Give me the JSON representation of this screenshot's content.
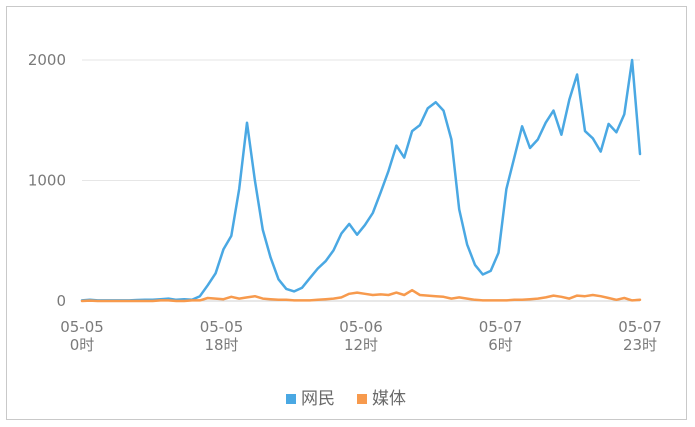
{
  "chart_data": {
    "type": "line",
    "title": "",
    "xlabel": "",
    "ylabel": "",
    "ylim": [
      0,
      2000
    ],
    "yticks": [
      "0",
      "1000",
      "2000"
    ],
    "grid": true,
    "legend_position": "bottom-center",
    "xtick_labels": [
      {
        "date": "05-05",
        "hour": "0时"
      },
      {
        "date": "05-05",
        "hour": "18时"
      },
      {
        "date": "05-06",
        "hour": "12时"
      },
      {
        "date": "05-07",
        "hour": "6时"
      },
      {
        "date": "05-07",
        "hour": "23时"
      }
    ],
    "series": [
      {
        "name": "网民",
        "color": "#4aa8e3",
        "values": [
          5,
          10,
          5,
          5,
          5,
          5,
          5,
          8,
          10,
          10,
          15,
          20,
          10,
          15,
          10,
          40,
          130,
          230,
          430,
          540,
          930,
          1480,
          1000,
          590,
          360,
          180,
          100,
          80,
          110,
          190,
          270,
          330,
          420,
          560,
          640,
          550,
          630,
          730,
          900,
          1080,
          1290,
          1190,
          1410,
          1460,
          1600,
          1650,
          1580,
          1340,
          760,
          470,
          300,
          220,
          250,
          400,
          930,
          1190,
          1450,
          1270,
          1340,
          1480,
          1580,
          1380,
          1670,
          1880,
          1410,
          1350,
          1240,
          1470,
          1400,
          1550,
          2000,
          1220
        ]
      },
      {
        "name": "媒体",
        "color": "#f79a4d",
        "values": [
          0,
          3,
          0,
          0,
          0,
          0,
          0,
          0,
          0,
          0,
          5,
          5,
          0,
          0,
          5,
          5,
          25,
          20,
          15,
          35,
          20,
          30,
          40,
          20,
          15,
          10,
          10,
          5,
          5,
          5,
          10,
          15,
          20,
          30,
          60,
          70,
          60,
          50,
          55,
          50,
          70,
          50,
          90,
          50,
          45,
          40,
          35,
          20,
          30,
          20,
          10,
          5,
          5,
          5,
          5,
          10,
          10,
          15,
          20,
          30,
          45,
          35,
          20,
          45,
          40,
          50,
          40,
          25,
          10,
          25,
          5,
          10
        ]
      }
    ]
  }
}
